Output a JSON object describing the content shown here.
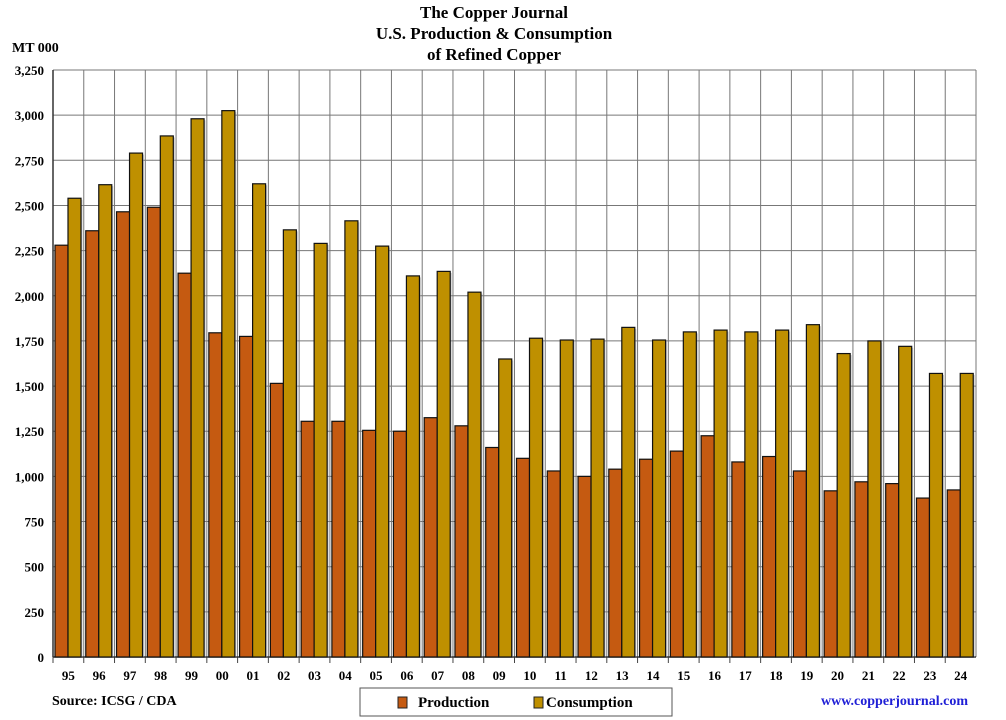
{
  "chart_data": {
    "type": "bar",
    "title": "The Copper Journal",
    "subtitle": [
      "U.S. Production & Consumption",
      "of Refined Copper"
    ],
    "ylabel": "MT 000",
    "xlabel": "",
    "ylim": [
      0,
      3250
    ],
    "yticks": [
      0,
      250,
      500,
      750,
      1000,
      1250,
      1500,
      1750,
      2000,
      2250,
      2500,
      2750,
      3000,
      3250
    ],
    "ytick_labels": [
      "0",
      "250",
      "500",
      "750",
      "1,000",
      "1,250",
      "1,500",
      "1,750",
      "2,000",
      "2,250",
      "2,500",
      "2,750",
      "3,000",
      "3,250"
    ],
    "grid": true,
    "categories": [
      "95",
      "96",
      "97",
      "98",
      "99",
      "00",
      "01",
      "02",
      "03",
      "04",
      "05",
      "06",
      "07",
      "08",
      "09",
      "10",
      "11",
      "12",
      "13",
      "14",
      "15",
      "16",
      "17",
      "18",
      "19",
      "20",
      "21",
      "22",
      "23",
      "24"
    ],
    "series": [
      {
        "name": "Production",
        "color": "#C55A11",
        "values": [
          2280,
          2360,
          2465,
          2490,
          2125,
          1795,
          1775,
          1515,
          1305,
          1305,
          1255,
          1250,
          1325,
          1280,
          1160,
          1100,
          1030,
          1000,
          1040,
          1095,
          1140,
          1225,
          1080,
          1110,
          1030,
          920,
          970,
          960,
          880,
          925
        ]
      },
      {
        "name": "Consumption",
        "color": "#BF9000",
        "values": [
          2540,
          2615,
          2790,
          2885,
          2980,
          3025,
          2620,
          2365,
          2290,
          2415,
          2275,
          2110,
          2135,
          2020,
          1650,
          1765,
          1755,
          1760,
          1825,
          1755,
          1800,
          1810,
          1800,
          1810,
          1840,
          1680,
          1750,
          1720,
          1570,
          1570
        ]
      }
    ],
    "legend_placement": "bottom-center",
    "source": "Source: ICSG / CDA",
    "website": "www.copperjournal.com"
  }
}
